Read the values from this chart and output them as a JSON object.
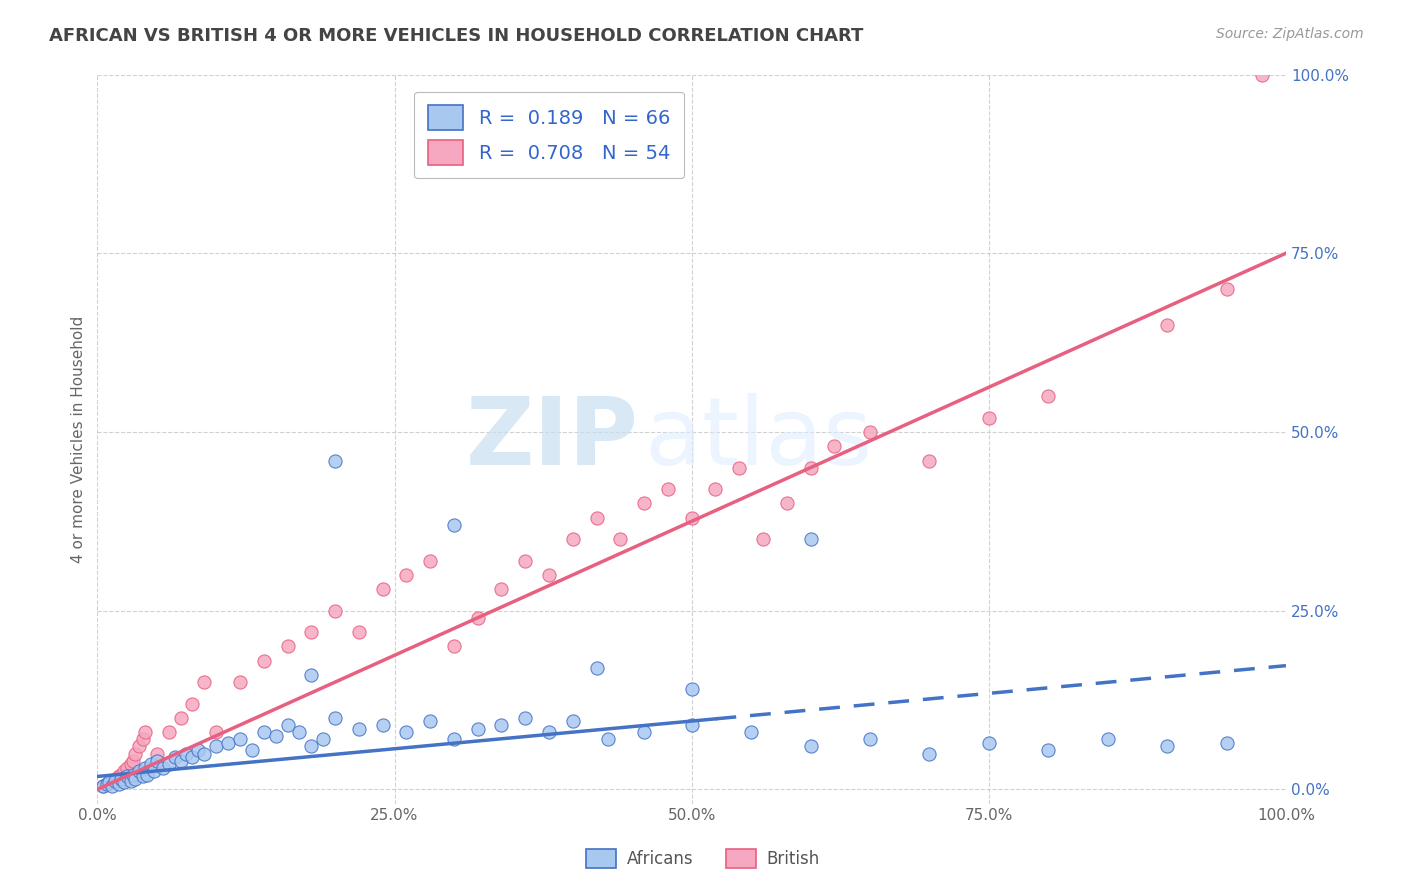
{
  "title": "AFRICAN VS BRITISH 4 OR MORE VEHICLES IN HOUSEHOLD CORRELATION CHART",
  "source": "Source: ZipAtlas.com",
  "ylabel": "4 or more Vehicles in Household",
  "xlim": [
    0,
    1.0
  ],
  "ylim": [
    -0.02,
    1.0
  ],
  "xtick_labels": [
    "0.0%",
    "25.0%",
    "50.0%",
    "75.0%",
    "100.0%"
  ],
  "xtick_values": [
    0.0,
    0.25,
    0.5,
    0.75,
    1.0
  ],
  "ytick_labels": [
    "0.0%",
    "25.0%",
    "50.0%",
    "75.0%",
    "100.0%"
  ],
  "ytick_values": [
    0.0,
    0.25,
    0.5,
    0.75,
    1.0
  ],
  "africans_color": "#a8c8f0",
  "british_color": "#f5a8c0",
  "africans_line_color": "#4472c4",
  "british_line_color": "#e86080",
  "legend_label_africans": "R =  0.189   N = 66",
  "legend_label_british": "R =  0.708   N = 54",
  "legend_africans": "Africans",
  "legend_british": "British",
  "africans_R": 0.189,
  "africans_N": 66,
  "british_R": 0.708,
  "british_N": 54,
  "africans_line_solid_end": 0.52,
  "africans_slope": 0.155,
  "africans_intercept": 0.018,
  "british_slope": 0.75,
  "british_intercept": 0.0,
  "africans_x": [
    0.005,
    0.008,
    0.01,
    0.012,
    0.015,
    0.018,
    0.02,
    0.022,
    0.025,
    0.028,
    0.03,
    0.032,
    0.035,
    0.038,
    0.04,
    0.042,
    0.045,
    0.048,
    0.05,
    0.055,
    0.06,
    0.065,
    0.07,
    0.075,
    0.08,
    0.085,
    0.09,
    0.1,
    0.11,
    0.12,
    0.13,
    0.14,
    0.15,
    0.16,
    0.17,
    0.18,
    0.19,
    0.2,
    0.22,
    0.24,
    0.26,
    0.28,
    0.3,
    0.32,
    0.34,
    0.36,
    0.38,
    0.4,
    0.43,
    0.46,
    0.5,
    0.55,
    0.6,
    0.65,
    0.7,
    0.75,
    0.8,
    0.85,
    0.9,
    0.95,
    0.2,
    0.3,
    0.42,
    0.18,
    0.5,
    0.6
  ],
  "africans_y": [
    0.005,
    0.008,
    0.01,
    0.005,
    0.012,
    0.008,
    0.015,
    0.01,
    0.018,
    0.012,
    0.02,
    0.015,
    0.025,
    0.018,
    0.03,
    0.02,
    0.035,
    0.025,
    0.04,
    0.03,
    0.035,
    0.045,
    0.04,
    0.05,
    0.045,
    0.055,
    0.05,
    0.06,
    0.065,
    0.07,
    0.055,
    0.08,
    0.075,
    0.09,
    0.08,
    0.06,
    0.07,
    0.1,
    0.085,
    0.09,
    0.08,
    0.095,
    0.07,
    0.085,
    0.09,
    0.1,
    0.08,
    0.095,
    0.07,
    0.08,
    0.09,
    0.08,
    0.06,
    0.07,
    0.05,
    0.065,
    0.055,
    0.07,
    0.06,
    0.065,
    0.46,
    0.37,
    0.17,
    0.16,
    0.14,
    0.35
  ],
  "british_x": [
    0.005,
    0.008,
    0.01,
    0.012,
    0.015,
    0.018,
    0.02,
    0.022,
    0.025,
    0.028,
    0.03,
    0.032,
    0.035,
    0.038,
    0.04,
    0.05,
    0.06,
    0.07,
    0.08,
    0.09,
    0.1,
    0.12,
    0.14,
    0.16,
    0.18,
    0.2,
    0.22,
    0.24,
    0.26,
    0.28,
    0.3,
    0.32,
    0.34,
    0.36,
    0.38,
    0.4,
    0.42,
    0.44,
    0.46,
    0.48,
    0.5,
    0.52,
    0.54,
    0.56,
    0.58,
    0.6,
    0.62,
    0.65,
    0.7,
    0.75,
    0.8,
    0.9,
    0.95,
    0.98
  ],
  "british_y": [
    0.005,
    0.008,
    0.01,
    0.012,
    0.015,
    0.018,
    0.02,
    0.025,
    0.03,
    0.035,
    0.04,
    0.05,
    0.06,
    0.07,
    0.08,
    0.05,
    0.08,
    0.1,
    0.12,
    0.15,
    0.08,
    0.15,
    0.18,
    0.2,
    0.22,
    0.25,
    0.22,
    0.28,
    0.3,
    0.32,
    0.2,
    0.24,
    0.28,
    0.32,
    0.3,
    0.35,
    0.38,
    0.35,
    0.4,
    0.42,
    0.38,
    0.42,
    0.45,
    0.35,
    0.4,
    0.45,
    0.48,
    0.5,
    0.46,
    0.52,
    0.55,
    0.65,
    0.7,
    1.0
  ]
}
